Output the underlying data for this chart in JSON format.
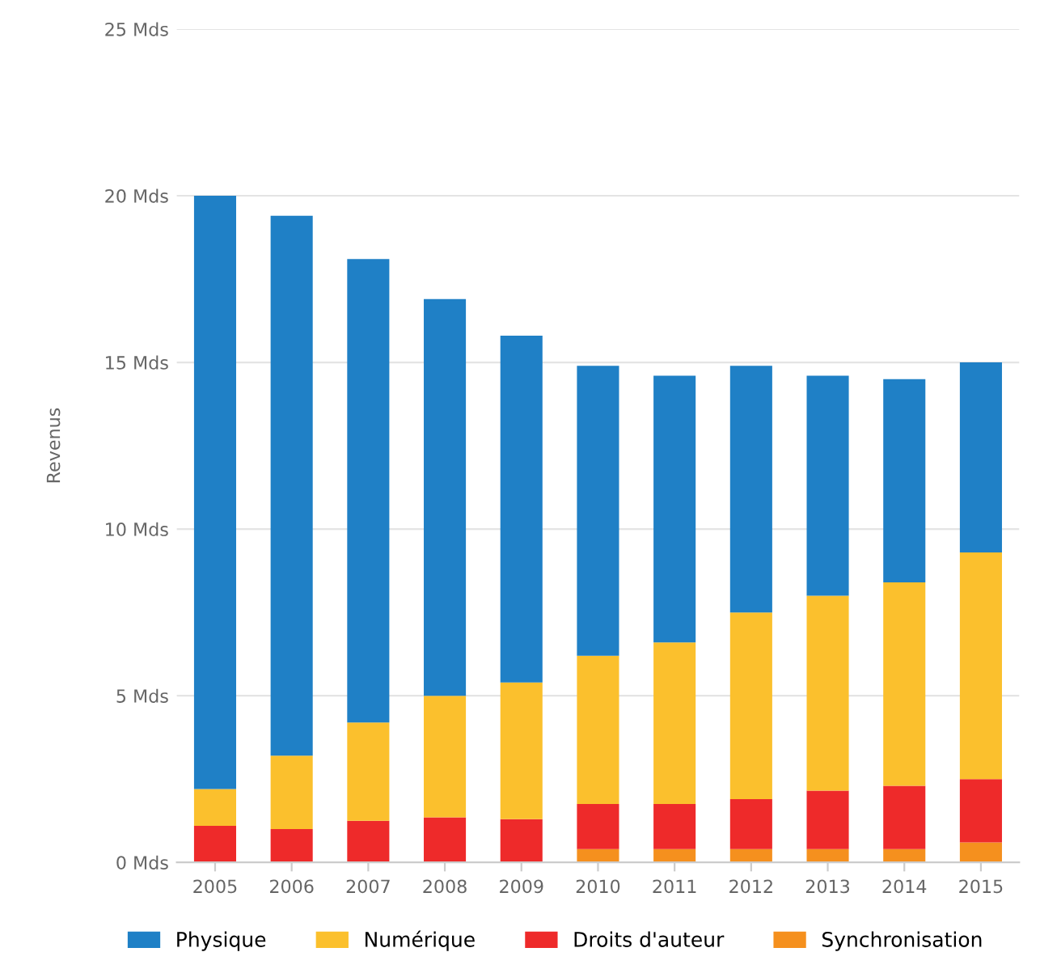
{
  "chart_data": {
    "type": "bar",
    "stacked": true,
    "ylabel": "Revenus",
    "categories": [
      "2005",
      "2006",
      "2007",
      "2008",
      "2009",
      "2010",
      "2011",
      "2012",
      "2013",
      "2014",
      "2015"
    ],
    "series": [
      {
        "name": "Synchronisation",
        "color": "#f5901e",
        "values": [
          0,
          0,
          0,
          0,
          0,
          0.4,
          0.4,
          0.4,
          0.4,
          0.4,
          0.6
        ]
      },
      {
        "name": "Droits d'auteur",
        "color": "#ee2a2a",
        "values": [
          1.1,
          1.0,
          1.25,
          1.35,
          1.3,
          1.35,
          1.35,
          1.5,
          1.75,
          1.9,
          1.9
        ]
      },
      {
        "name": "Numérique",
        "color": "#fbc02d",
        "values": [
          1.1,
          2.2,
          2.95,
          3.65,
          4.1,
          4.45,
          4.85,
          5.6,
          5.85,
          6.1,
          6.8
        ]
      },
      {
        "name": "Physique",
        "color": "#1f80c6",
        "values": [
          17.8,
          16.2,
          13.9,
          11.9,
          10.4,
          8.7,
          8.0,
          7.4,
          6.6,
          6.1,
          5.7
        ]
      }
    ],
    "ylim": [
      0,
      25
    ],
    "yticks": [
      {
        "value": 0,
        "label": "0 Mds"
      },
      {
        "value": 5,
        "label": "5 Mds"
      },
      {
        "value": 10,
        "label": "10 Mds"
      },
      {
        "value": 15,
        "label": "15 Mds"
      },
      {
        "value": 20,
        "label": "20 Mds"
      },
      {
        "value": 25,
        "label": "25 Mds"
      }
    ],
    "grid": "y",
    "legend": "bottom"
  }
}
